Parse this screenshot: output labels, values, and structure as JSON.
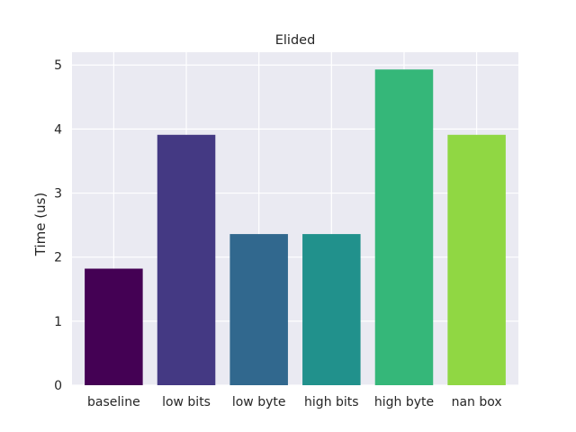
{
  "chart_data": {
    "type": "bar",
    "title": "Elided",
    "xlabel": "",
    "ylabel": "Time (us)",
    "categories": [
      "baseline",
      "low bits",
      "low byte",
      "high bits",
      "high byte",
      "nan box"
    ],
    "values": [
      1.82,
      3.91,
      2.36,
      2.36,
      4.93,
      3.91
    ],
    "colors": [
      "#440154",
      "#443983",
      "#31688e",
      "#21918c",
      "#35b779",
      "#90d743"
    ],
    "ylim": [
      0,
      5.2
    ],
    "yticks": [
      0,
      1,
      2,
      3,
      4,
      5
    ],
    "grid": true,
    "background": "#eaeaf2",
    "grid_color": "#ffffff"
  }
}
